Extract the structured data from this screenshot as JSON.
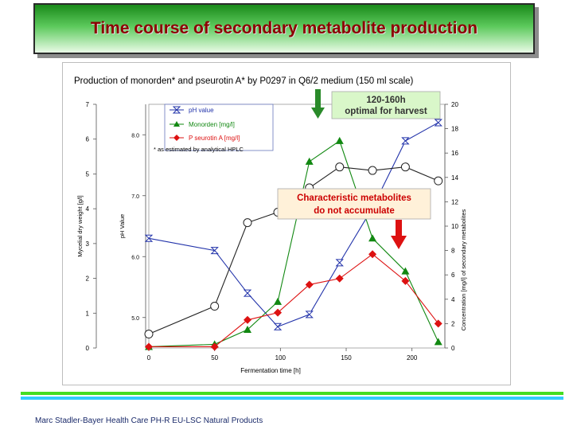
{
  "slide_title": "Time course of secondary metabolite production",
  "footer": "Marc Stadler-Bayer Health Care PH-R EU-LSC Natural Products",
  "colors": {
    "title_text": "#8b0000",
    "banner_green": "#3cb043",
    "rule_green": "#44dd22",
    "rule_cyan": "#33ccff"
  },
  "chart_data": {
    "type": "line",
    "title": "Production of monorden* and pseurotin A* by P0297 in Q6/2 medium (150 ml scale)",
    "xlabel": "Fermentation time [h]",
    "xlim": [
      0,
      225
    ],
    "xticks": [
      0,
      50,
      100,
      150,
      200
    ],
    "axes": {
      "mycelial": {
        "label": "Mycelial dry weight [g/l]",
        "ylim": [
          0,
          7
        ],
        "ticks": [
          0,
          1,
          2,
          3,
          4,
          5,
          6,
          7
        ]
      },
      "ph": {
        "label": "pH Value",
        "ylim": [
          4.5,
          8.5
        ],
        "ticks": [
          "5.0",
          "6.0",
          "7.0",
          "8.0"
        ]
      },
      "concentration": {
        "label": "Concentration [mg/l] of secondary metabolites",
        "ylim": [
          0,
          20
        ],
        "ticks": [
          0,
          2,
          4,
          6,
          8,
          10,
          12,
          14,
          16,
          18,
          20
        ]
      }
    },
    "legend_position": "top-left",
    "footnote": "* as estimated by analytical HPLC",
    "series": [
      {
        "name": "pH value",
        "axis": "ph",
        "color": "#2233aa",
        "marker": "hourglass",
        "x": [
          0,
          50,
          75,
          98,
          122,
          145,
          170,
          195,
          220
        ],
        "y": [
          6.3,
          6.1,
          5.4,
          4.85,
          5.05,
          5.9,
          6.8,
          7.9,
          8.2
        ]
      },
      {
        "name": "Monorden [mg/l]",
        "axis": "concentration",
        "color": "#118811",
        "marker": "triangle",
        "x": [
          0,
          50,
          75,
          98,
          122,
          145,
          170,
          195,
          220
        ],
        "y": [
          0.1,
          0.3,
          1.5,
          3.8,
          15.3,
          17.0,
          9.0,
          6.3,
          0.5
        ]
      },
      {
        "name": "P seurotin A [mg/l]",
        "axis": "concentration",
        "color": "#dd1111",
        "marker": "diamond",
        "x": [
          0,
          50,
          75,
          98,
          122,
          145,
          170,
          195,
          220
        ],
        "y": [
          0.1,
          0.1,
          2.3,
          2.9,
          5.2,
          5.7,
          7.7,
          5.5,
          2.0
        ]
      },
      {
        "name": "",
        "axis": "mycelial",
        "color": "#222222",
        "marker": "circle",
        "x": [
          0,
          50,
          75,
          98,
          122,
          145,
          170,
          195,
          220
        ],
        "y": [
          0.4,
          1.2,
          3.6,
          3.9,
          4.6,
          5.2,
          5.1,
          5.2,
          4.8
        ]
      }
    ],
    "annotations": {
      "harvest_box": {
        "line1": "120-160h",
        "line2": "optimal for harvest"
      },
      "metabolites_box": {
        "line1": "Characteristic metabolites",
        "line2": "do not accumulate"
      }
    }
  }
}
